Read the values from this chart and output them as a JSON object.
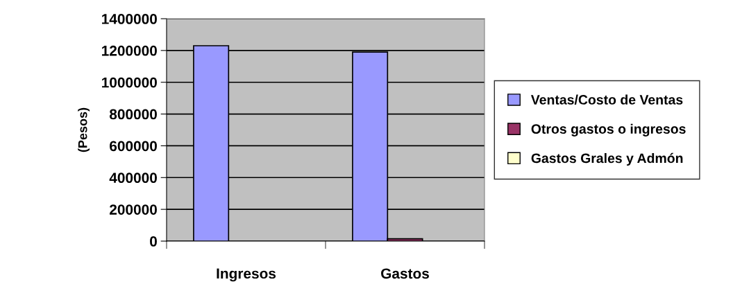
{
  "chart_data": {
    "type": "bar",
    "ylabel": "(Pesos)",
    "categories": [
      "Ingresos",
      "Gastos"
    ],
    "series": [
      {
        "name": "Ventas/Costo de Ventas",
        "color": "#9999ff",
        "values": [
          1230000,
          1190000
        ]
      },
      {
        "name": "Otros gastos o ingresos",
        "color": "#993366",
        "values": [
          null,
          15000
        ]
      },
      {
        "name": "Gastos Grales y Admón",
        "color": "#ffffcc",
        "values": [
          null,
          null
        ]
      }
    ],
    "ylim": [
      0,
      1400000
    ],
    "yticks": [
      0,
      200000,
      400000,
      600000,
      800000,
      1000000,
      1200000,
      1400000
    ],
    "grid": "y",
    "legend": "right"
  }
}
